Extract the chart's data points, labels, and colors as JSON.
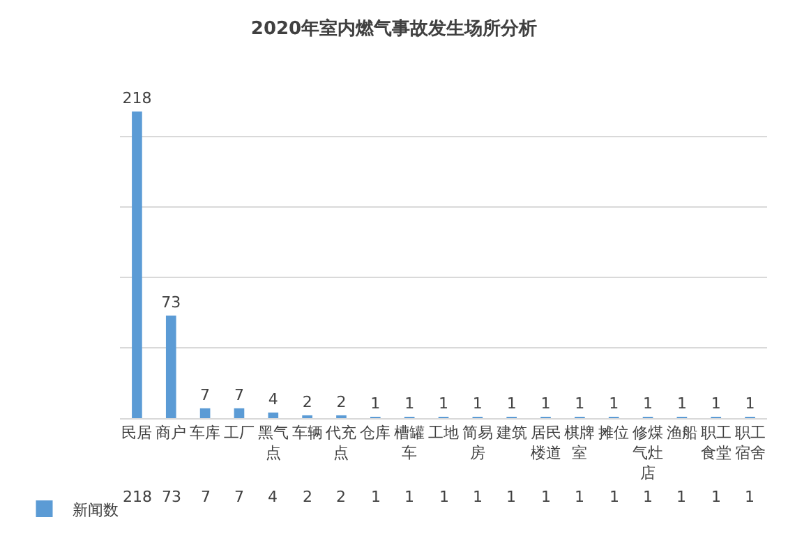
{
  "chart_data": {
    "type": "bar",
    "title": "2020年室内燃气事故发生场所分析",
    "categories": [
      "民居",
      "商户",
      "车库",
      "工厂",
      "黑气点",
      "车辆",
      "代充点",
      "仓库",
      "槽罐车",
      "工地",
      "简易房",
      "建筑",
      "居民楼道",
      "棋牌室",
      "摊位",
      "修煤气灶店",
      "渔船",
      "职工食堂",
      "职工宿舍"
    ],
    "series": [
      {
        "name": "新闻数",
        "color": "#5b9bd5",
        "values": [
          218,
          73,
          7,
          7,
          4,
          2,
          2,
          1,
          1,
          1,
          1,
          1,
          1,
          1,
          1,
          1,
          1,
          1,
          1
        ],
        "value_labels": [
          "218",
          "73",
          "7",
          "7",
          "4",
          "2",
          "2",
          "1",
          "1",
          "1",
          "1",
          "1",
          "1",
          "1",
          "1",
          "1",
          "1",
          "1",
          "1"
        ]
      }
    ],
    "grid": "y",
    "tick_labels": "x",
    "data_labels": true,
    "legend": "bottom left"
  }
}
